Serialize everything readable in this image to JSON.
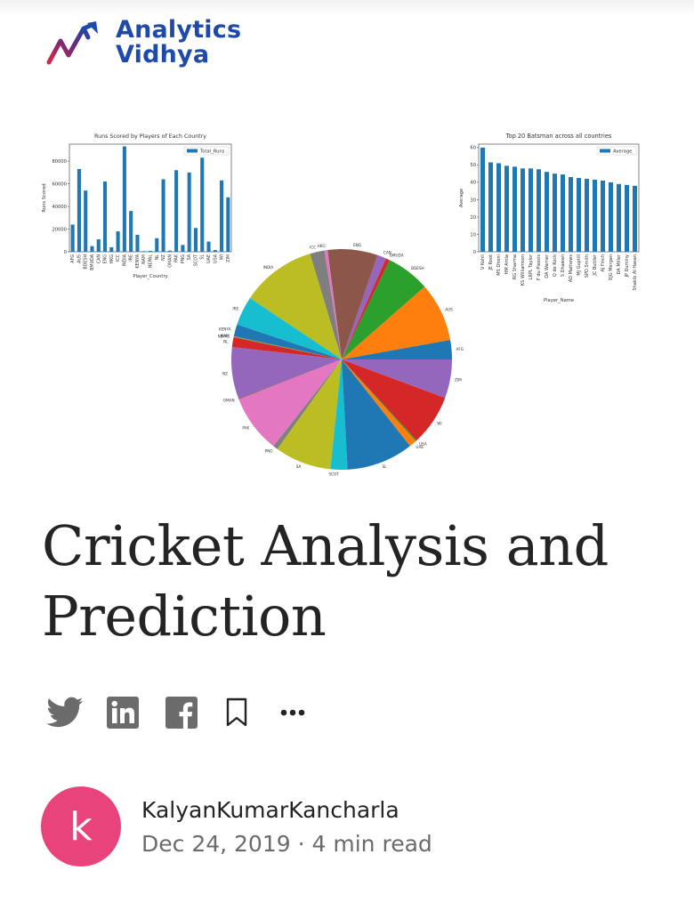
{
  "brand": {
    "line1": "Analytics",
    "line2": "Vidhya",
    "color": "#1f4aa8",
    "accent": "#d6264d"
  },
  "article": {
    "title": "Cricket Analysis and Prediction",
    "author": "KalyanKumarKancharla",
    "avatar_letter": "k",
    "date": "Dec 24, 2019",
    "separator": "·",
    "read_time": "4 min read",
    "avatar_color": "#e8437a"
  },
  "share": {
    "icons": [
      "twitter-icon",
      "linkedin-icon",
      "facebook-icon",
      "bookmark-icon",
      "more-icon"
    ]
  },
  "chart_data": [
    {
      "type": "bar",
      "title": "Runs Scored by Players of Each Country",
      "xlabel": "Player_Country",
      "ylabel": "Runs Scored",
      "legend": "Total_Runs",
      "legend_position": "top-right",
      "color": "#1f77b4",
      "ylim": [
        0,
        95000
      ],
      "yticks": [
        0,
        20000,
        40000,
        60000,
        80000
      ],
      "categories": [
        "AFG",
        "AUS",
        "BDESH",
        "BMUDA",
        "CAN",
        "ENG",
        "HKG",
        "ICC",
        "INDIA",
        "IRE",
        "KENYA",
        "NAM",
        "NEPAL",
        "NL",
        "NZ",
        "OMAN",
        "PAK",
        "PNG",
        "SA",
        "SCOT",
        "SL",
        "UAE",
        "USA",
        "WI",
        "ZIM"
      ],
      "values": [
        24000,
        73000,
        54000,
        5000,
        11000,
        62000,
        4000,
        18000,
        93000,
        36000,
        15000,
        500,
        800,
        12000,
        64000,
        1000,
        72000,
        6000,
        70000,
        21000,
        83000,
        9000,
        1500,
        63000,
        48000
      ]
    },
    {
      "type": "bar",
      "title": "Top 20 Batsman across all countries",
      "xlabel": "Player_Name",
      "ylabel": "Average",
      "legend": "Average",
      "legend_position": "top-right",
      "color": "#1f77b4",
      "ylim": [
        0,
        62
      ],
      "yticks": [
        0,
        10,
        20,
        30,
        40,
        50,
        60
      ],
      "categories": [
        "V Kohli",
        "JE Root",
        "MS Dhoni",
        "HM Amla",
        "RG Sharma",
        "KS Williamson",
        "LRPL Taylor",
        "F du Plessis",
        "DA Warner",
        "Q de Kock",
        "S Dhawan",
        "AD Mathews",
        "MJ Guptill",
        "SPD Smith",
        "JC Buttler",
        "AJ Finch",
        "EJG Morgan",
        "DA Miller",
        "JP Duminy",
        "Shakib Al Hasan"
      ],
      "values": [
        60,
        51.5,
        51,
        49.5,
        49,
        48,
        48,
        47.5,
        46,
        45,
        44.5,
        43,
        42.5,
        42,
        41.5,
        41,
        40,
        39,
        38.5,
        38
      ]
    },
    {
      "type": "pie",
      "labels": [
        "AFG",
        "AUS",
        "BDESH",
        "BMUDA",
        "CAN",
        "ENG",
        "HKG",
        "ICC",
        "INDIA",
        "IRE",
        "KENYA",
        "NAM",
        "NEPAL",
        "NL",
        "NZ",
        "OMAN",
        "PAK",
        "PNG",
        "SA",
        "SCOT",
        "SL",
        "UAE",
        "USA",
        "WI",
        "ZIM"
      ],
      "values": [
        24000,
        73000,
        54000,
        5000,
        11000,
        62000,
        4000,
        18000,
        93000,
        36000,
        15000,
        500,
        800,
        12000,
        64000,
        1000,
        72000,
        6000,
        70000,
        21000,
        83000,
        9000,
        1500,
        63000,
        48000
      ],
      "colors": [
        "#1f77b4",
        "#ff7f0e",
        "#2ca02c",
        "#d62728",
        "#9467bd",
        "#8c564b",
        "#e377c2",
        "#7f7f7f",
        "#bcbd22",
        "#17becf",
        "#1f77b4",
        "#ff7f0e",
        "#2ca02c",
        "#d62728",
        "#9467bd",
        "#8c564b",
        "#e377c2",
        "#7f7f7f",
        "#bcbd22",
        "#17becf",
        "#1f77b4",
        "#ff7f0e",
        "#2ca02c",
        "#d62728",
        "#9467bd"
      ]
    }
  ]
}
